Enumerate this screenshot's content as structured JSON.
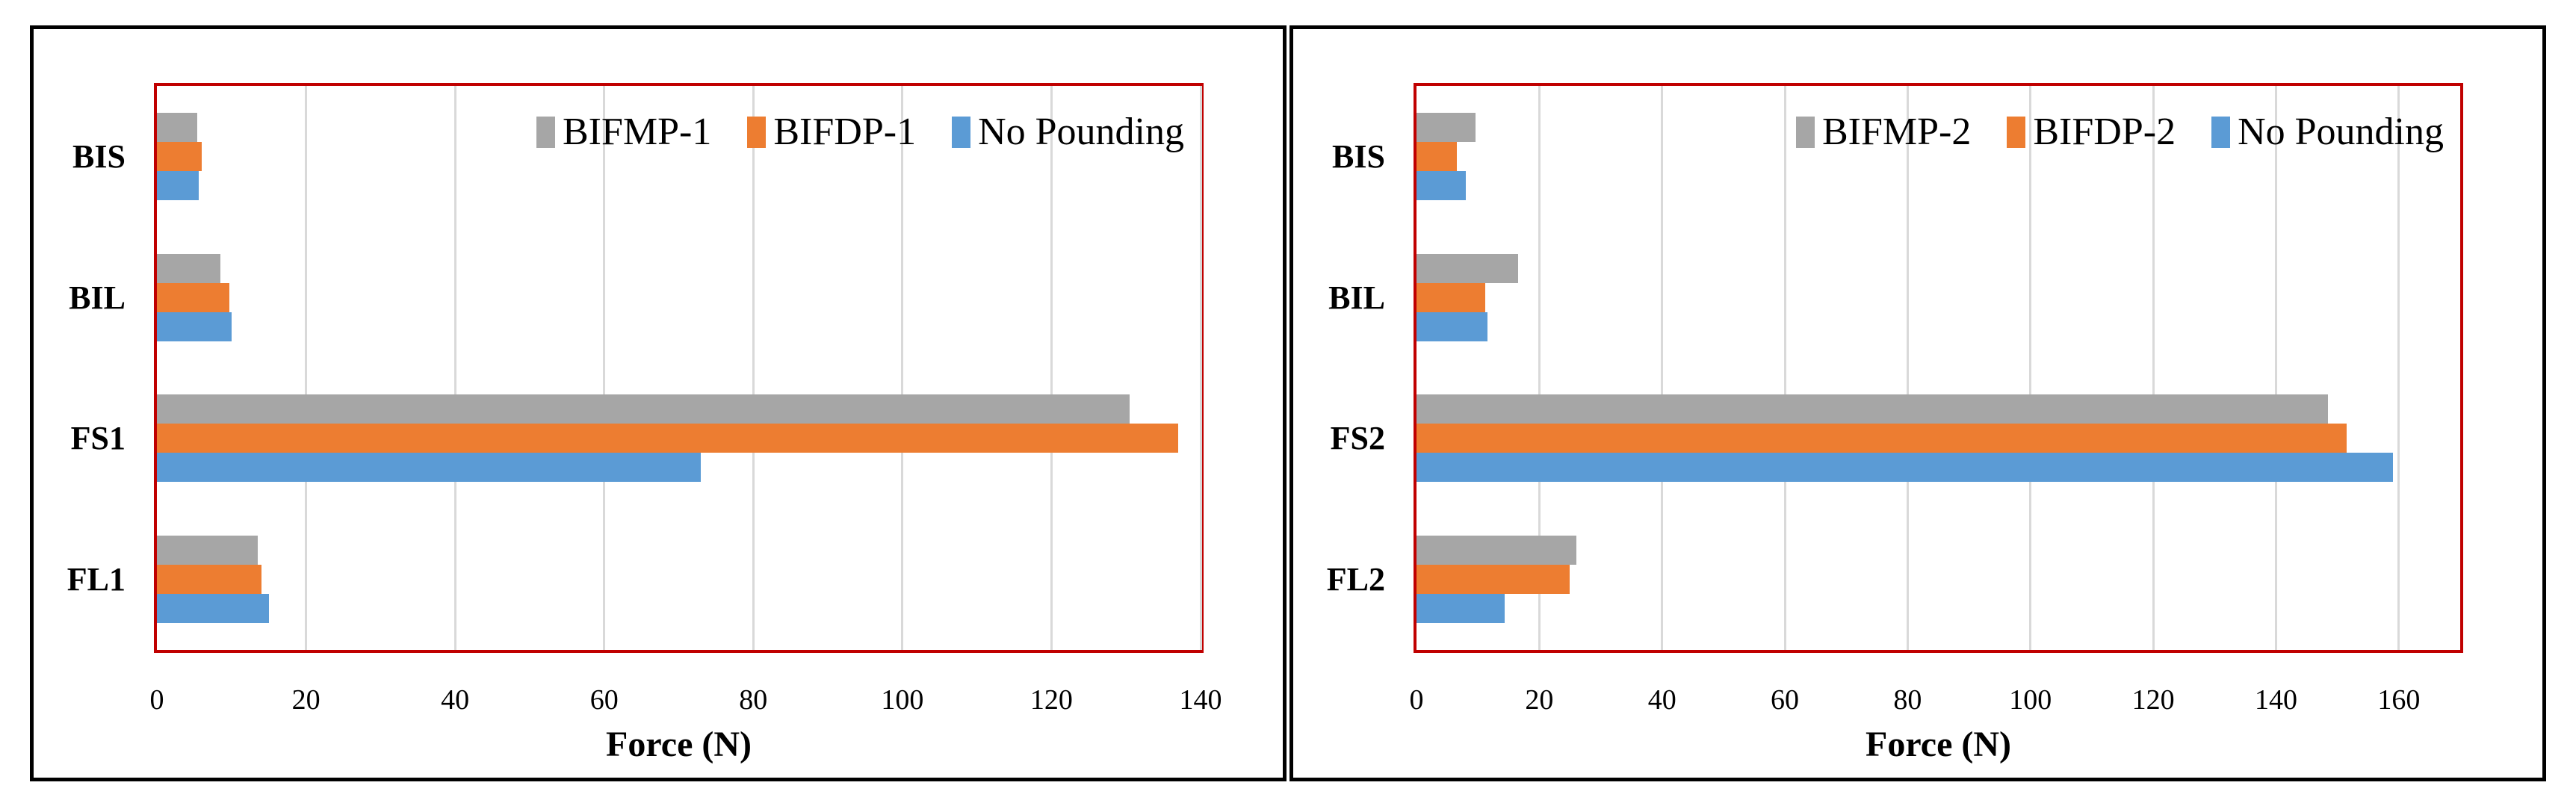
{
  "figure": {
    "background": "#FFFFFF",
    "panel_border_color": "#000000",
    "plot_border_color": "#C00000",
    "gridline_color": "#D9D9D9"
  },
  "chart_data": [
    {
      "type": "bar",
      "orientation": "horizontal",
      "title": "",
      "xlabel": "Force (N)",
      "categories": [
        "BIS",
        "BIL",
        "FS1",
        "FL1"
      ],
      "series": [
        {
          "name": "BIFMP-1",
          "color": "#A6A6A6",
          "values": [
            5.4,
            8.5,
            130.5,
            13.5
          ]
        },
        {
          "name": "BIFDP-1",
          "color": "#ED7D31",
          "values": [
            6.0,
            9.7,
            137.0,
            14.0
          ]
        },
        {
          "name": "No Pounding",
          "color": "#5B9BD5",
          "values": [
            5.6,
            10.0,
            73.0,
            15.0
          ]
        }
      ],
      "xlim": [
        0,
        140
      ],
      "xticks": [
        0,
        20,
        40,
        60,
        80,
        100,
        120,
        140
      ],
      "grid": true,
      "legend_position": "top-right-inside"
    },
    {
      "type": "bar",
      "orientation": "horizontal",
      "title": "",
      "xlabel": "Force (N)",
      "categories": [
        "BIS",
        "BIL",
        "FS2",
        "FL2"
      ],
      "series": [
        {
          "name": "BIFMP-2",
          "color": "#A6A6A6",
          "values": [
            9.6,
            16.5,
            148.5,
            26.0
          ]
        },
        {
          "name": "BIFDP-2",
          "color": "#ED7D31",
          "values": [
            6.6,
            11.2,
            151.5,
            25.0
          ]
        },
        {
          "name": "No Pounding",
          "color": "#5B9BD5",
          "values": [
            8.0,
            11.5,
            159.0,
            14.3
          ]
        }
      ],
      "xlim": [
        0,
        170
      ],
      "xticks": [
        0,
        20,
        40,
        60,
        80,
        100,
        120,
        140,
        160
      ],
      "grid": true,
      "legend_position": "top-right-inside"
    }
  ]
}
